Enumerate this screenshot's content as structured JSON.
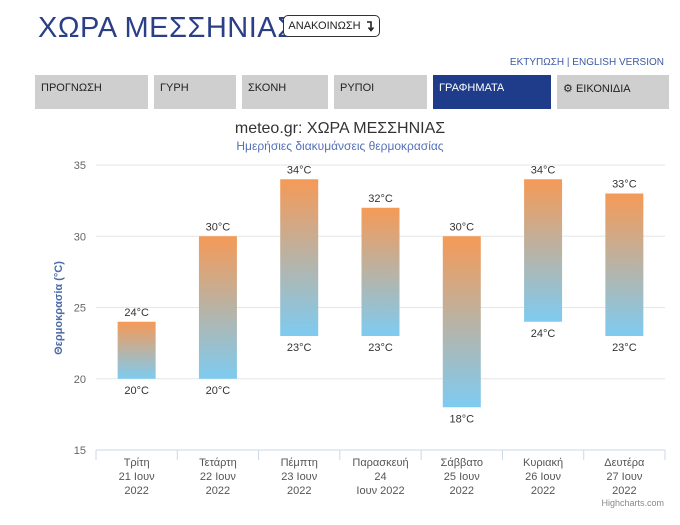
{
  "page_title": "ΧΩΡΑ ΜΕΣΣΗΝΙΑΣ",
  "announce_label": "ΑΝΑΚΟΙΝΩΣΗ",
  "announce_icon": "arrow-return-icon",
  "links": {
    "print": "ΕΚΤΥΠΩΣΗ",
    "separator": "|",
    "english": "ENGLISH VERSION"
  },
  "tabs": [
    {
      "label": "ΠΡΟΓΝΩΣΗ"
    },
    {
      "label": "ΓΥΡΗ"
    },
    {
      "label": "ΣΚΟΝΗ"
    },
    {
      "label": "ΡΥΠΟΙ"
    },
    {
      "label": "ΓΡΑΦΗΜΑΤΑ",
      "active": true
    },
    {
      "label": "ΕΙΚΟΝΙΔΙΑ",
      "icon": "gear-icon"
    }
  ],
  "colors": {
    "brand": "#2a3f86",
    "active_tab": "#1f3c8a",
    "tab": "#cfcfcf",
    "bar_high": "#f59a57",
    "bar_low": "#7ecbf1"
  },
  "credit": "Highcharts.com",
  "chart_data": {
    "type": "columnrange",
    "title": "meteo.gr: ΧΩΡΑ ΜΕΣΣΗΝΙΑΣ",
    "subtitle": "Ημερήσιες διακυμάνσεις θερμοκρασίας",
    "ylabel": "Θερμοκρασία (°C)",
    "ylim": [
      15,
      35
    ],
    "yticks": [
      15,
      20,
      25,
      30,
      35
    ],
    "grid": true,
    "legend": "none",
    "categories": [
      [
        "Τρίτη",
        "21 Ιουν",
        "2022"
      ],
      [
        "Τετάρτη",
        "22 Ιουν",
        "2022"
      ],
      [
        "Πέμπτη",
        "23 Ιουν",
        "2022"
      ],
      [
        "Παρασκευή",
        "24",
        "Ιουν 2022"
      ],
      [
        "Σάββατο",
        "25 Ιουν",
        "2022"
      ],
      [
        "Κυριακή",
        "26 Ιουν",
        "2022"
      ],
      [
        "Δευτέρα",
        "27 Ιουν",
        "2022"
      ]
    ],
    "low": [
      20,
      20,
      23,
      23,
      18,
      24,
      23
    ],
    "high": [
      24,
      30,
      34,
      32,
      30,
      34,
      33
    ],
    "unit": "°C"
  }
}
